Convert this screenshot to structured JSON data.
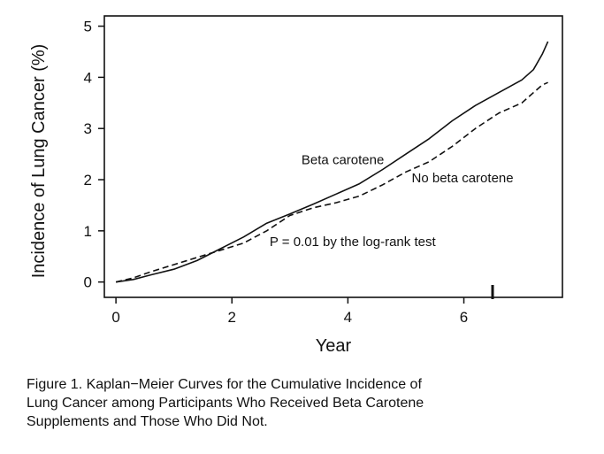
{
  "chart_data": {
    "type": "line",
    "xlabel": "Year",
    "ylabel": "Incidence of Lung Cancer (%)",
    "xlim": [
      -0.2,
      7.7
    ],
    "ylim": [
      -0.3,
      5.2
    ],
    "xticks": [
      0,
      2,
      4,
      6
    ],
    "yticks": [
      0,
      1,
      2,
      3,
      4,
      5
    ],
    "grid": false,
    "series": [
      {
        "name": "Beta carotene",
        "style": "solid",
        "color": "#111111",
        "x": [
          0,
          0.3,
          0.6,
          1.0,
          1.4,
          1.8,
          2.2,
          2.6,
          3.0,
          3.4,
          3.8,
          4.2,
          4.6,
          5.0,
          5.4,
          5.8,
          6.2,
          6.6,
          7.0,
          7.2,
          7.35,
          7.45
        ],
        "y": [
          0,
          0.05,
          0.14,
          0.25,
          0.42,
          0.65,
          0.88,
          1.15,
          1.33,
          1.52,
          1.72,
          1.92,
          2.2,
          2.5,
          2.8,
          3.15,
          3.45,
          3.7,
          3.95,
          4.15,
          4.45,
          4.7
        ]
      },
      {
        "name": "No beta carotene",
        "style": "dashed",
        "color": "#111111",
        "x": [
          0,
          0.3,
          0.6,
          1.0,
          1.4,
          1.8,
          2.2,
          2.6,
          3.0,
          3.4,
          3.8,
          4.2,
          4.6,
          5.0,
          5.4,
          5.8,
          6.2,
          6.6,
          7.0,
          7.2,
          7.35,
          7.45
        ],
        "y": [
          0,
          0.08,
          0.2,
          0.34,
          0.48,
          0.62,
          0.76,
          1.0,
          1.3,
          1.45,
          1.55,
          1.68,
          1.9,
          2.15,
          2.35,
          2.65,
          3.0,
          3.3,
          3.5,
          3.7,
          3.85,
          3.9
        ]
      }
    ],
    "annotations": [
      {
        "text": "Beta carotene",
        "x": 3.2,
        "y": 2.3
      },
      {
        "text": "No beta carotene",
        "x": 5.1,
        "y": 1.95
      },
      {
        "text": "P = 0.01 by the log-rank test",
        "x": 2.65,
        "y": 0.7
      }
    ]
  },
  "caption": {
    "line1": "Figure 1. Kaplan−Meier Curves for the Cumulative Incidence of",
    "line2": "Lung Cancer among Participants Who Received Beta Carotene",
    "line3": "Supplements and Those Who Did Not."
  }
}
